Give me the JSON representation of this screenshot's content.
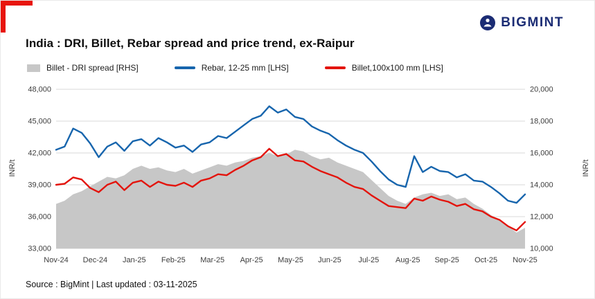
{
  "logo": {
    "text": "BIGMINT",
    "icon": "miner-in-circle-icon",
    "color": "#1b2c74"
  },
  "header": {
    "title": "India : DRI, Billet, Rebar spread and price trend, ex-Raipur"
  },
  "footer": {
    "text": "Source : BigMint | Last updated : 03-11-2025"
  },
  "colors": {
    "accent_red": "#e8150d",
    "grid": "#d9d9d9",
    "spread_gray": "#c7c7c7",
    "rebar_blue": "#1765ad",
    "billet_red": "#e3140c"
  },
  "chart_data": {
    "type": "line",
    "title": "India : DRI, Billet, Rebar spread and price trend, ex-Raipur",
    "xlabel": "",
    "ylabel_left": "INR/t",
    "ylabel_right": "INR/t",
    "ylim_left": [
      33000,
      48000
    ],
    "yticks_left": [
      33000,
      36000,
      39000,
      42000,
      45000,
      48000
    ],
    "ylim_right": [
      10000,
      20000
    ],
    "yticks_right": [
      10000,
      12000,
      14000,
      16000,
      18000,
      20000
    ],
    "grid": true,
    "legend_position": "top",
    "x_tick_labels": [
      "Nov-24",
      "Dec-24",
      "Jan-25",
      "Feb-25",
      "Mar-25",
      "Apr-25",
      "May-25",
      "Jun-25",
      "Jul-25",
      "Aug-25",
      "Sep-25",
      "Oct-25",
      "Nov-25"
    ],
    "series": [
      {
        "id": "spread-area",
        "name": "Billet - DRI spread  [RHS]",
        "type": "area",
        "axis": "right",
        "color": "#c7c7c7",
        "values": [
          12800,
          13000,
          13400,
          13600,
          13900,
          14200,
          14500,
          14400,
          14600,
          15000,
          15200,
          15000,
          15100,
          14900,
          14800,
          15000,
          14700,
          14900,
          15100,
          15300,
          15200,
          15400,
          15500,
          15700,
          15800,
          16000,
          15800,
          15900,
          16200,
          16100,
          15800,
          15600,
          15700,
          15400,
          15200,
          15000,
          14800,
          14300,
          13800,
          13300,
          13000,
          12800,
          13200,
          13400,
          13500,
          13300,
          13400,
          13100,
          13200,
          12800,
          12500,
          12100,
          11800,
          11400,
          11000,
          11300
        ]
      },
      {
        "id": "rebar-line",
        "name": "Rebar, 12-25 mm [LHS]",
        "type": "line",
        "axis": "left",
        "color": "#1765ad",
        "values": [
          42300,
          42600,
          44300,
          43900,
          42900,
          41600,
          42600,
          43000,
          42200,
          43100,
          43300,
          42700,
          43400,
          43000,
          42500,
          42700,
          42100,
          42800,
          43000,
          43600,
          43400,
          44000,
          44600,
          45200,
          45500,
          46400,
          45800,
          46100,
          45400,
          45200,
          44500,
          44100,
          43800,
          43200,
          42700,
          42300,
          42000,
          41200,
          40300,
          39500,
          39000,
          38800,
          41700,
          40200,
          40700,
          40300,
          40200,
          39700,
          40000,
          39400,
          39300,
          38800,
          38200,
          37500,
          37300,
          38100
        ]
      },
      {
        "id": "billet-line",
        "name": "Billet,100x100 mm [LHS]",
        "type": "line",
        "axis": "left",
        "color": "#e3140c",
        "values": [
          39000,
          39100,
          39700,
          39500,
          38700,
          38300,
          39000,
          39300,
          38500,
          39200,
          39400,
          38800,
          39300,
          39000,
          38900,
          39200,
          38800,
          39400,
          39600,
          40000,
          39900,
          40400,
          40800,
          41300,
          41600,
          42400,
          41700,
          41900,
          41300,
          41200,
          40700,
          40300,
          40000,
          39700,
          39200,
          38800,
          38600,
          38000,
          37500,
          37000,
          36900,
          36800,
          37700,
          37500,
          37900,
          37600,
          37400,
          37000,
          37200,
          36700,
          36500,
          36000,
          35700,
          35100,
          34700,
          35500
        ]
      }
    ]
  }
}
